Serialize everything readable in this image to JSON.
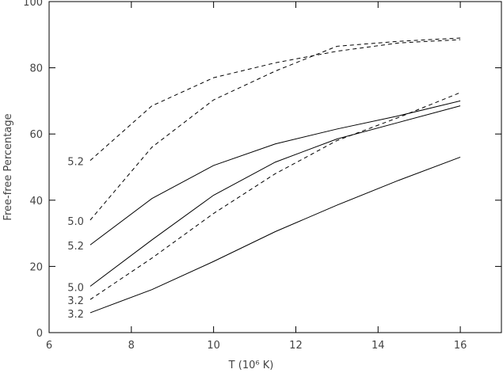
{
  "chart_data": {
    "type": "line",
    "xlabel": "T (10⁶ K)",
    "ylabel": "Free-free Percentage",
    "x": [
      7,
      8.5,
      10,
      11.5,
      13,
      14.5,
      16
    ],
    "series": [
      {
        "name": "5.2",
        "color": "#000000",
        "dash": true,
        "values": [
          52,
          68.5,
          77,
          81.5,
          85,
          87.5,
          88.5
        ]
      },
      {
        "name": "5.0",
        "color": "#000000",
        "dash": true,
        "values": [
          34,
          56,
          70.3,
          79,
          86.5,
          88,
          89
        ]
      },
      {
        "name": "5.2",
        "color": "#000000",
        "dash": false,
        "values": [
          26.5,
          40.5,
          50.5,
          57,
          61.5,
          65.5,
          70
        ]
      },
      {
        "name": "5.0",
        "color": "#000000",
        "dash": false,
        "values": [
          14,
          28,
          41.5,
          51.5,
          58.5,
          63.5,
          68.5
        ]
      },
      {
        "name": "3.2",
        "color": "#000000",
        "dash": true,
        "values": [
          10,
          22.5,
          36,
          48,
          58,
          65,
          72.5
        ]
      },
      {
        "name": "3.2",
        "color": "#000000",
        "dash": false,
        "values": [
          6,
          13,
          21.5,
          30.5,
          38.5,
          46,
          53
        ]
      }
    ],
    "xlim": [
      6,
      17
    ],
    "ylim": [
      0,
      100
    ],
    "xticks": [
      6,
      8,
      10,
      12,
      14,
      16
    ],
    "yticks": [
      0,
      20,
      40,
      60,
      80,
      100
    ]
  }
}
